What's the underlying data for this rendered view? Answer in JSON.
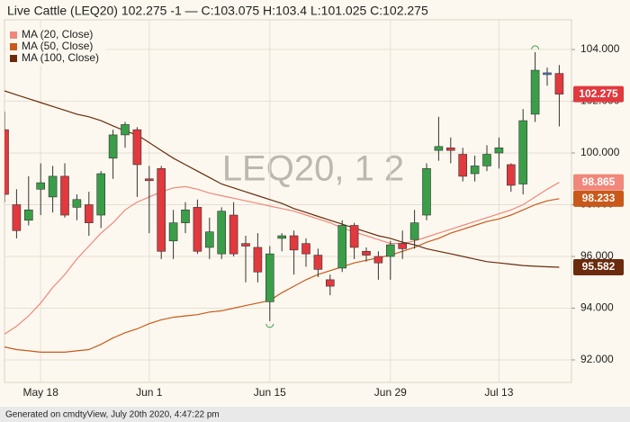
{
  "chart_data": {
    "type": "candlestick",
    "title": "Live Cattle (LEQ20) 102.275 -1 — C:103.075 H:103.4 L:101.025 C:102.275",
    "watermark": "LEQ20, 1 2",
    "footer": "Generated on cmdtyView, July 20th 2020, 4:47:22 pm",
    "categories": [
      null,
      null,
      null,
      "May 18",
      null,
      null,
      null,
      null,
      null,
      null,
      null,
      null,
      "Jun 1",
      null,
      null,
      null,
      null,
      null,
      null,
      null,
      null,
      null,
      "Jun 15",
      null,
      null,
      null,
      null,
      null,
      null,
      null,
      null,
      null,
      "Jun 29",
      null,
      null,
      null,
      null,
      null,
      null,
      null,
      null,
      "Jul 13",
      null,
      null,
      null,
      null,
      null
    ],
    "open": [
      100.9,
      98.0,
      97.4,
      98.6,
      98.3,
      99.1,
      97.9,
      98.0,
      97.6,
      99.8,
      100.7,
      100.9,
      99.0,
      99.4,
      96.6,
      97.3,
      97.9,
      96.35,
      96.1,
      97.6,
      96.5,
      96.35,
      94.25,
      96.7,
      96.8,
      96.5,
      96.05,
      95.1,
      95.55,
      97.2,
      96.2,
      96.0,
      96.0,
      96.5,
      96.65,
      97.6,
      100.1,
      100.2,
      99.95,
      99.2,
      99.5,
      100.0,
      99.55,
      98.8,
      101.5,
      103.1,
      103.075
    ],
    "high": [
      101.6,
      98.6,
      99.1,
      99.6,
      99.5,
      99.6,
      98.4,
      98.5,
      99.3,
      100.9,
      101.2,
      101.0,
      99.5,
      99.5,
      97.8,
      98.1,
      98.2,
      97.5,
      97.9,
      98.1,
      96.8,
      96.9,
      96.4,
      96.9,
      97.0,
      96.7,
      96.3,
      95.3,
      97.4,
      97.3,
      96.35,
      96.2,
      96.6,
      97.0,
      97.8,
      99.6,
      101.4,
      100.6,
      100.2,
      99.9,
      100.3,
      100.6,
      99.6,
      101.7,
      103.9,
      103.3,
      103.4
    ],
    "low": [
      98.1,
      96.7,
      97.2,
      97.6,
      97.7,
      97.5,
      97.4,
      96.8,
      97.1,
      99.0,
      100.2,
      98.3,
      96.9,
      95.9,
      95.9,
      96.9,
      96.1,
      95.9,
      95.9,
      96.0,
      95.0,
      95.0,
      93.5,
      96.2,
      95.3,
      95.6,
      95.2,
      94.5,
      95.4,
      95.9,
      95.8,
      95.1,
      95.1,
      95.9,
      96.3,
      97.4,
      99.7,
      99.6,
      98.9,
      98.9,
      99.3,
      99.4,
      98.5,
      98.4,
      101.2,
      102.6,
      101.025
    ],
    "close": [
      98.4,
      97.0,
      97.8,
      98.85,
      99.1,
      97.6,
      98.2,
      97.3,
      99.2,
      100.7,
      101.1,
      99.55,
      98.95,
      96.2,
      97.3,
      97.8,
      96.2,
      96.95,
      97.75,
      96.1,
      96.4,
      95.4,
      96.1,
      96.8,
      96.25,
      96.1,
      95.5,
      94.85,
      97.2,
      96.35,
      96.05,
      95.75,
      96.45,
      96.3,
      97.3,
      99.4,
      100.25,
      100.1,
      99.1,
      99.5,
      99.95,
      100.2,
      98.75,
      101.25,
      103.2,
      103.1,
      102.275
    ],
    "colors": {
      "up": "#3a9e48",
      "down": "#e0393e",
      "unchanged": "#4a7fd4",
      "extreme": "#3a9e48"
    },
    "series": [
      {
        "name": "MA (20, Close)",
        "color": "#f0877a",
        "values": [
          93.0,
          93.3,
          93.7,
          94.2,
          94.8,
          95.3,
          95.9,
          96.4,
          96.9,
          97.3,
          97.8,
          98.1,
          98.3,
          98.5,
          98.65,
          98.7,
          98.6,
          98.45,
          98.35,
          98.25,
          98.15,
          98.05,
          97.95,
          97.85,
          97.75,
          97.6,
          97.45,
          97.3,
          97.1,
          96.95,
          96.8,
          96.65,
          96.5,
          96.5,
          96.6,
          96.75,
          96.9,
          97.05,
          97.2,
          97.35,
          97.5,
          97.65,
          97.8,
          98.0,
          98.3,
          98.6,
          98.865
        ]
      },
      {
        "name": "MA (50, Close)",
        "color": "#c8591a",
        "values": [
          92.5,
          92.4,
          92.35,
          92.3,
          92.3,
          92.3,
          92.35,
          92.4,
          92.6,
          92.85,
          93.05,
          93.2,
          93.4,
          93.55,
          93.65,
          93.7,
          93.75,
          93.85,
          93.9,
          94.0,
          94.1,
          94.2,
          94.3,
          94.6,
          94.85,
          95.1,
          95.3,
          95.45,
          95.6,
          95.75,
          95.85,
          95.95,
          96.05,
          96.2,
          96.35,
          96.55,
          96.7,
          96.9,
          97.05,
          97.2,
          97.35,
          97.45,
          97.6,
          97.8,
          98.0,
          98.15,
          98.233
        ]
      },
      {
        "name": "MA (100, Close)",
        "color": "#6b2a0c",
        "values": [
          102.4,
          102.25,
          102.1,
          101.95,
          101.8,
          101.65,
          101.5,
          101.4,
          101.25,
          101.05,
          100.85,
          100.7,
          100.4,
          100.1,
          99.8,
          99.55,
          99.3,
          99.05,
          98.8,
          98.65,
          98.5,
          98.35,
          98.2,
          98.05,
          97.85,
          97.7,
          97.55,
          97.4,
          97.25,
          97.1,
          96.95,
          96.8,
          96.7,
          96.55,
          96.45,
          96.3,
          96.2,
          96.1,
          96.0,
          95.9,
          95.8,
          95.75,
          95.7,
          95.65,
          95.62,
          95.6,
          95.582
        ]
      }
    ],
    "ylim": [
      91.13,
      105.15
    ],
    "yticks": [
      {
        "value": 92,
        "label": "92.000"
      },
      {
        "value": 94,
        "label": "94.000"
      },
      {
        "value": 96,
        "label": "96.000"
      },
      {
        "value": 98,
        "label": "98.000"
      },
      {
        "value": 100,
        "label": "100.000"
      },
      {
        "value": 102,
        "label": "102.000"
      },
      {
        "value": 104,
        "label": "104.000"
      }
    ],
    "grid": true,
    "legend": "upper left"
  }
}
